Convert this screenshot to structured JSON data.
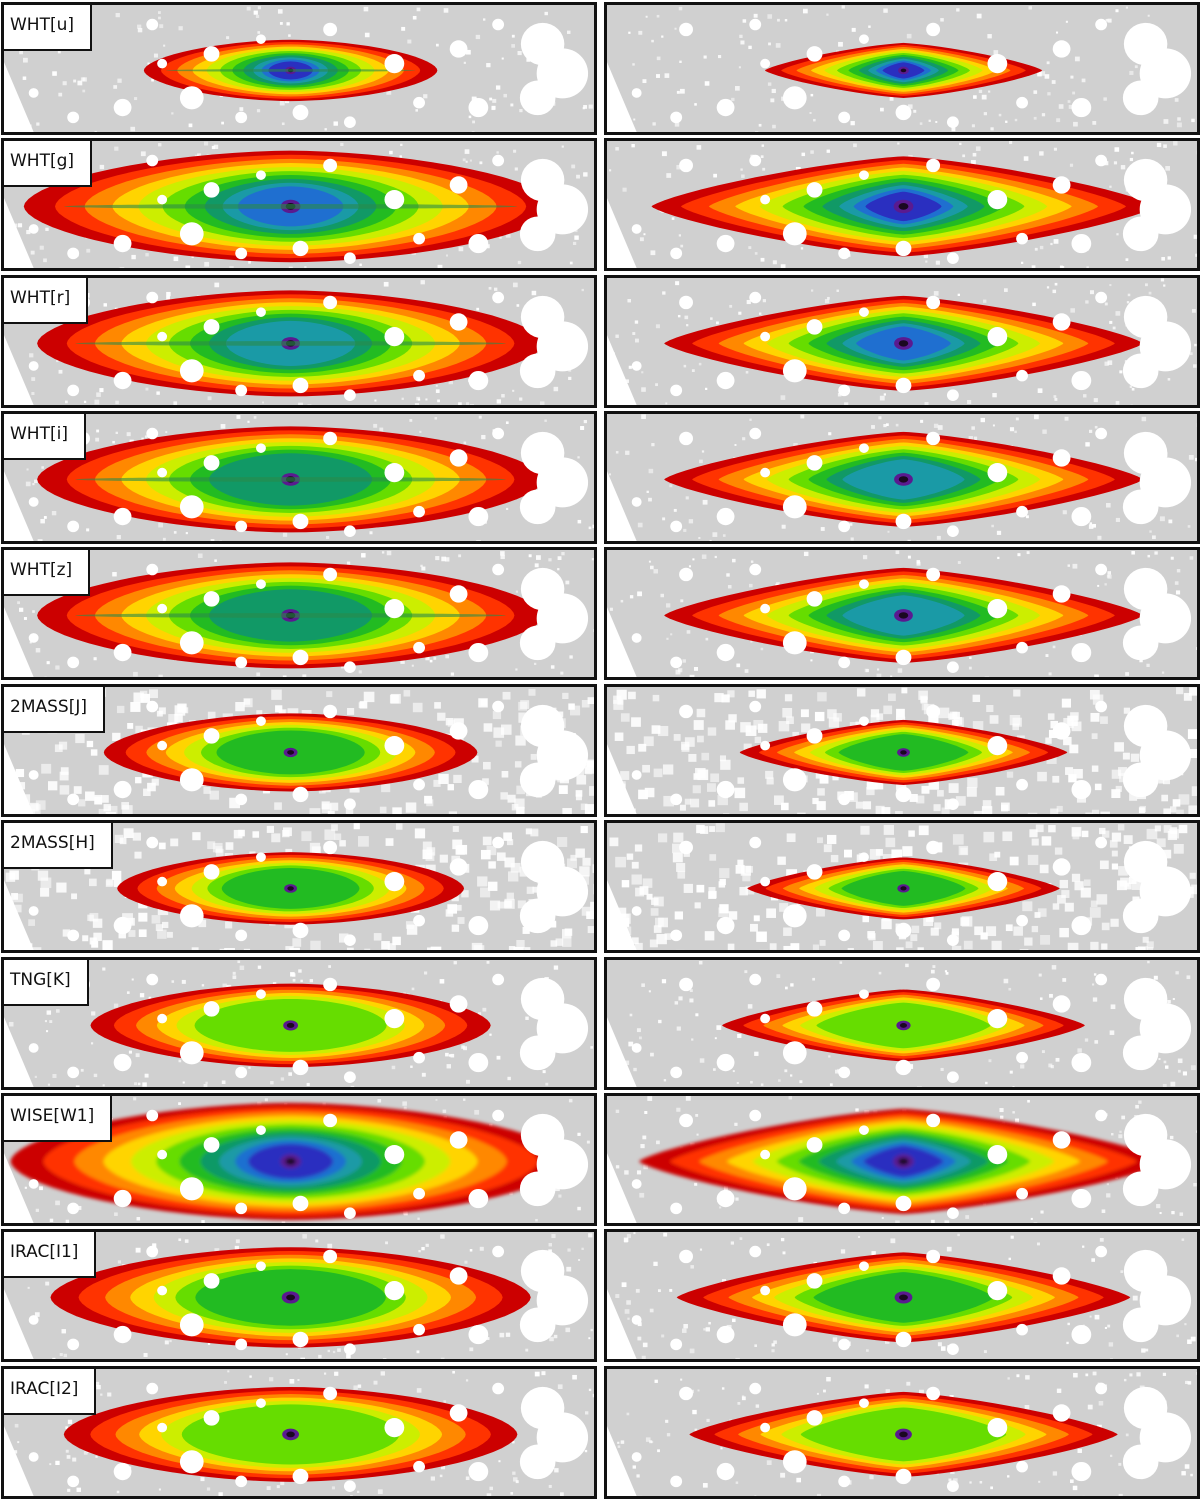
{
  "rows": [
    {
      "band": "WHT[u]",
      "obs": {
        "scale": 0.55,
        "noise": 0.6,
        "core": 0.85,
        "dust": true,
        "faint": true
      },
      "model": {
        "scale": 0.55,
        "core": 0.9,
        "lens": true
      }
    },
    {
      "band": "WHT[g]",
      "obs": {
        "scale": 1.0,
        "noise": 0.35,
        "core": 0.75,
        "dust": true
      },
      "model": {
        "scale": 1.0,
        "core": 0.85,
        "lens": true
      }
    },
    {
      "band": "WHT[r]",
      "obs": {
        "scale": 0.95,
        "noise": 0.35,
        "core": 0.7,
        "dust": true
      },
      "model": {
        "scale": 0.95,
        "core": 0.8,
        "lens": true
      }
    },
    {
      "band": "WHT[i]",
      "obs": {
        "scale": 0.95,
        "noise": 0.3,
        "core": 0.65,
        "dust": true
      },
      "model": {
        "scale": 0.95,
        "core": 0.7,
        "lens": true
      }
    },
    {
      "band": "WHT[z]",
      "obs": {
        "scale": 0.95,
        "noise": 0.4,
        "core": 0.65,
        "dust": true
      },
      "model": {
        "scale": 0.95,
        "core": 0.7,
        "lens": true
      }
    },
    {
      "band": "2MASS[J]",
      "obs": {
        "scale": 0.7,
        "noise": 0.9,
        "core": 0.55,
        "pixel": true
      },
      "model": {
        "scale": 0.65,
        "core": 0.55,
        "pixel": true
      }
    },
    {
      "band": "2MASS[H]",
      "obs": {
        "scale": 0.65,
        "noise": 0.9,
        "core": 0.5,
        "pixel": true
      },
      "model": {
        "scale": 0.62,
        "core": 0.5,
        "pixel": true
      }
    },
    {
      "band": "TNG[K]",
      "obs": {
        "scale": 0.75,
        "noise": 0.4,
        "core": 0.45
      },
      "model": {
        "scale": 0.72,
        "core": 0.45
      }
    },
    {
      "band": "WISE[W1]",
      "obs": {
        "scale": 1.05,
        "noise": 0.2,
        "core": 0.85,
        "blur": true
      },
      "model": {
        "scale": 1.05,
        "core": 0.85,
        "blur": true
      }
    },
    {
      "band": "IRAC[I1]",
      "obs": {
        "scale": 0.9,
        "noise": 0.35,
        "core": 0.5
      },
      "model": {
        "scale": 0.9,
        "core": 0.5
      }
    },
    {
      "band": "IRAC[I2]",
      "obs": {
        "scale": 0.85,
        "noise": 0.35,
        "core": 0.45
      },
      "model": {
        "scale": 0.85,
        "core": 0.45
      }
    }
  ],
  "colors": {
    "background": "#d0d0d0",
    "mask": "#ffffff",
    "contours": [
      "#cc0000",
      "#ff3300",
      "#ff8800",
      "#ffd400",
      "#ccee00",
      "#66dd00",
      "#22bb22",
      "#119966",
      "#1a9aa6",
      "#1f6fd0",
      "#2a2fc0",
      "#5a1a90",
      "#1a0820"
    ]
  }
}
